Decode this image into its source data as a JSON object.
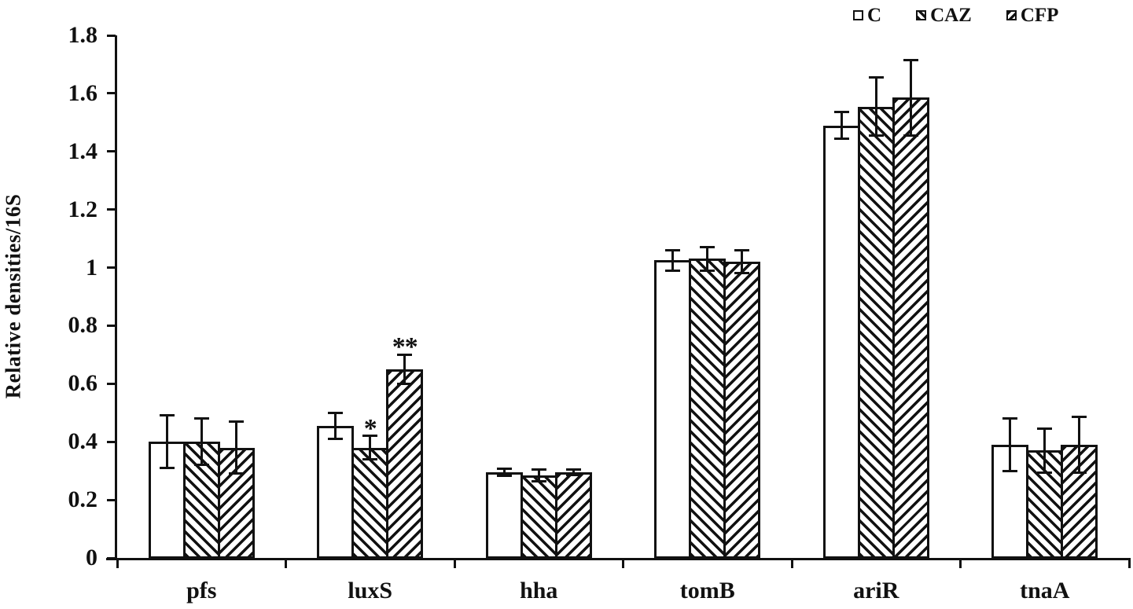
{
  "chart_data": {
    "type": "bar",
    "title": "",
    "xlabel": "",
    "ylabel": "Relative densities/16S",
    "ylim": [
      0,
      1.8
    ],
    "grid": false,
    "legend_position": "top-right",
    "background_color": "#ffffff",
    "line_color": "#111111",
    "bar_fill_color": "#ffffff",
    "yticks": [
      {
        "value": 0,
        "label": "0"
      },
      {
        "value": 0.2,
        "label": "0.2"
      },
      {
        "value": 0.4,
        "label": "0.4"
      },
      {
        "value": 0.6,
        "label": "0.6"
      },
      {
        "value": 0.8,
        "label": "0.8"
      },
      {
        "value": 1,
        "label": "1"
      },
      {
        "value": 1.2,
        "label": "1.2"
      },
      {
        "value": 1.4,
        "label": "1.4"
      },
      {
        "value": 1.6,
        "label": "1.6"
      },
      {
        "value": 1.8,
        "label": "1.8"
      }
    ],
    "categories": [
      "pfs",
      "luxS",
      "hha",
      "tomB",
      "ariR",
      "tnaA"
    ],
    "series": [
      {
        "name": "C",
        "pattern": "plain",
        "values": [
          0.4,
          0.455,
          0.295,
          1.025,
          1.49,
          0.39
        ],
        "errors": [
          0.09,
          0.045,
          0.012,
          0.035,
          0.045,
          0.09
        ]
      },
      {
        "name": "CAZ",
        "pattern": "backslash-hatch",
        "values": [
          0.4,
          0.38,
          0.285,
          1.03,
          1.555,
          0.37
        ],
        "errors": [
          0.08,
          0.04,
          0.02,
          0.04,
          0.1,
          0.075
        ]
      },
      {
        "name": "CFP",
        "pattern": "slash-hatch",
        "values": [
          0.38,
          0.65,
          0.295,
          1.02,
          1.585,
          0.39
        ],
        "errors": [
          0.09,
          0.05,
          0.01,
          0.04,
          0.13,
          0.095
        ]
      }
    ],
    "annotations": [
      {
        "category": "luxS",
        "series": "CAZ",
        "text": "*"
      },
      {
        "category": "luxS",
        "series": "CFP",
        "text": "**"
      }
    ]
  }
}
